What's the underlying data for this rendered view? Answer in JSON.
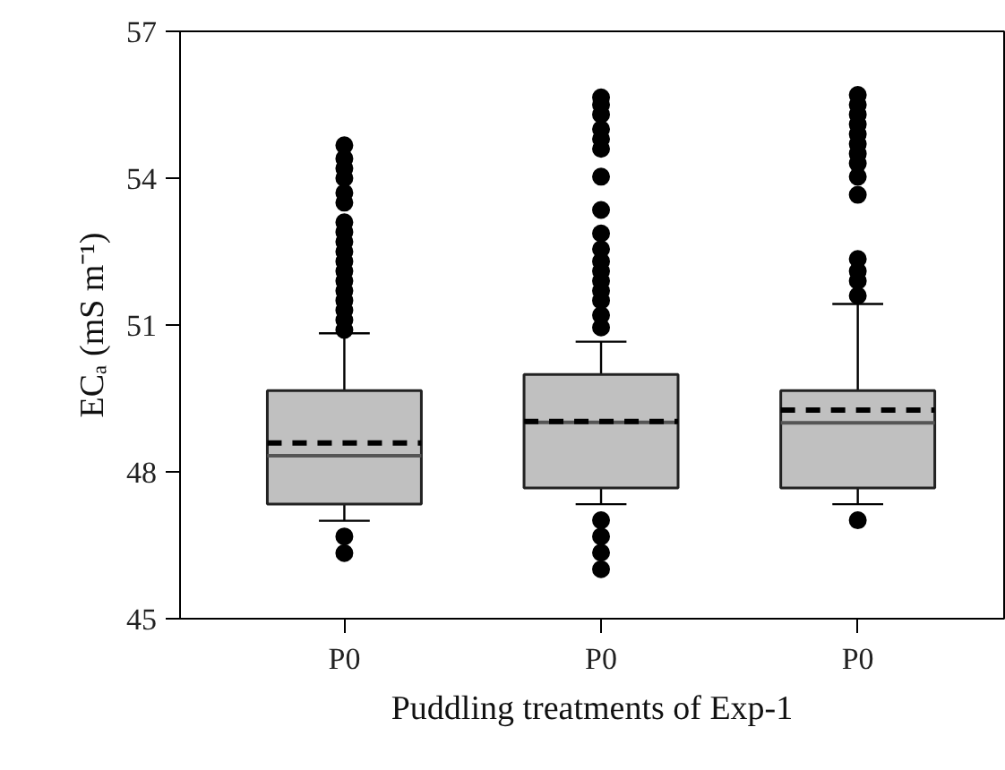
{
  "chart_data": {
    "type": "box",
    "xlabel": "Puddling treatments of Exp-1",
    "ylabel": "ECₐ (mS m⁻¹)",
    "categories": [
      "P0",
      "P0",
      "P0"
    ],
    "color": "#c0c0c0",
    "ylim": [
      45,
      57
    ],
    "yticks": [
      45,
      48,
      51,
      54,
      57
    ],
    "grid": false,
    "boxes": [
      {
        "low": 47.0,
        "q1": 47.34,
        "median": 48.33,
        "q3": 49.66,
        "high": 50.83,
        "mean": 48.59,
        "outliers": [
          46.34,
          46.68,
          50.9,
          51.1,
          51.3,
          51.5,
          51.7,
          51.9,
          52.1,
          52.3,
          52.5,
          52.7,
          52.9,
          53.1,
          53.5,
          53.7,
          54.0,
          54.2,
          54.4,
          54.67
        ]
      },
      {
        "low": 47.34,
        "q1": 47.67,
        "median": 49.01,
        "q3": 49.99,
        "high": 50.66,
        "mean": 49.03,
        "outliers": [
          46.01,
          46.35,
          46.68,
          47.01,
          50.95,
          51.2,
          51.5,
          51.7,
          51.9,
          52.1,
          52.3,
          52.55,
          52.87,
          53.35,
          54.03,
          54.6,
          54.8,
          55.0,
          55.3,
          55.5,
          55.65
        ]
      },
      {
        "low": 47.34,
        "q1": 47.67,
        "median": 49.0,
        "q3": 49.66,
        "high": 51.43,
        "mean": 49.26,
        "outliers": [
          47.01,
          51.6,
          51.9,
          52.1,
          52.35,
          53.66,
          54.03,
          54.3,
          54.5,
          54.7,
          54.9,
          55.1,
          55.3,
          55.5,
          55.7
        ]
      }
    ]
  }
}
